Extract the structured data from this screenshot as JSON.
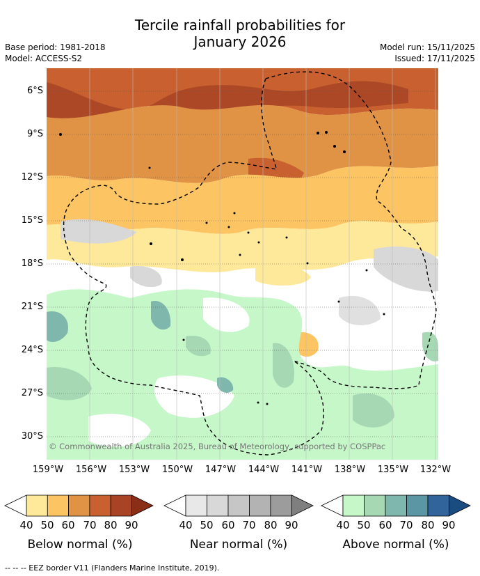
{
  "title_line1": "Tercile rainfall probabilities for",
  "title_line2": "January 2026",
  "base_period": "Base period: 1981-2018",
  "model": "Model: ACCESS-S2",
  "model_run": "Model run: 15/11/2025",
  "issued": "Issued: 17/11/2025",
  "lat_labels": [
    "6°S",
    "9°S",
    "12°S",
    "15°S",
    "18°S",
    "21°S",
    "24°S",
    "27°S",
    "30°S"
  ],
  "lon_labels": [
    "159°W",
    "156°W",
    "153°W",
    "150°W",
    "147°W",
    "144°W",
    "141°W",
    "138°W",
    "135°W",
    "132°W"
  ],
  "copyright": "© Commonwealth of Australia 2025, Bureau of Meteorology, supported by COSPPac",
  "legends": [
    {
      "title": "Below normal (%)",
      "ticks": [
        "40",
        "50",
        "60",
        "70",
        "80",
        "90"
      ],
      "colors": [
        "#ffffff",
        "#fee99a",
        "#fcc462",
        "#e09245",
        "#c9602f",
        "#a84425",
        "#8a2e17"
      ]
    },
    {
      "title": "Near normal (%)",
      "ticks": [
        "40",
        "50",
        "60",
        "70",
        "80",
        "90"
      ],
      "colors": [
        "#ffffff",
        "#e8e8e8",
        "#d8d8d8",
        "#c6c6c6",
        "#b3b3b3",
        "#9c9c9c",
        "#7f7f7f"
      ]
    },
    {
      "title": "Above normal (%)",
      "ticks": [
        "40",
        "50",
        "60",
        "70",
        "80",
        "90"
      ],
      "colors": [
        "#ffffff",
        "#c5f7c8",
        "#a6d8b4",
        "#7fb7ad",
        "#5b96a5",
        "#31649a",
        "#194c80"
      ]
    }
  ],
  "footer": "--  --  -- EEZ border V11 (Flanders Marine Institute, 2019)."
}
